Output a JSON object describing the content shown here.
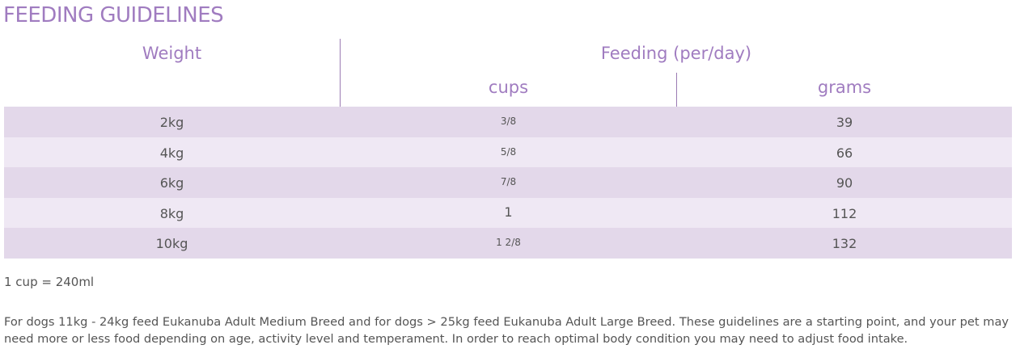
{
  "title": "FEEDING GUIDELINES",
  "table": {
    "header_weight": "Weight",
    "header_feeding": "Feeding (per/day)",
    "header_cups": "cups",
    "header_grams": "grams",
    "rows": [
      {
        "weight": "2kg",
        "cups": "3/8",
        "grams": "39"
      },
      {
        "weight": "4kg",
        "cups": "5/8",
        "grams": "66"
      },
      {
        "weight": "6kg",
        "cups": "7/8",
        "grams": "90"
      },
      {
        "weight": "8kg",
        "cups": "1",
        "grams": "112"
      },
      {
        "weight": "10kg",
        "cups": "1 2/8",
        "grams": "132"
      }
    ]
  },
  "note": "1 cup = 240ml",
  "paragraph": "For dogs 11kg - 24kg feed Eukanuba Adult Medium Breed and for dogs > 25kg feed Eukanuba Adult Large Breed. These guidelines are a starting point, and your pet may need more or less food depending on age, activity level and temperament. In order to reach optimal body condition you may need to adjust food intake.",
  "colors": {
    "accent": "#a07cc0",
    "row_dark": "#e3d8ea",
    "row_light": "#efe8f4",
    "text": "#555555"
  }
}
